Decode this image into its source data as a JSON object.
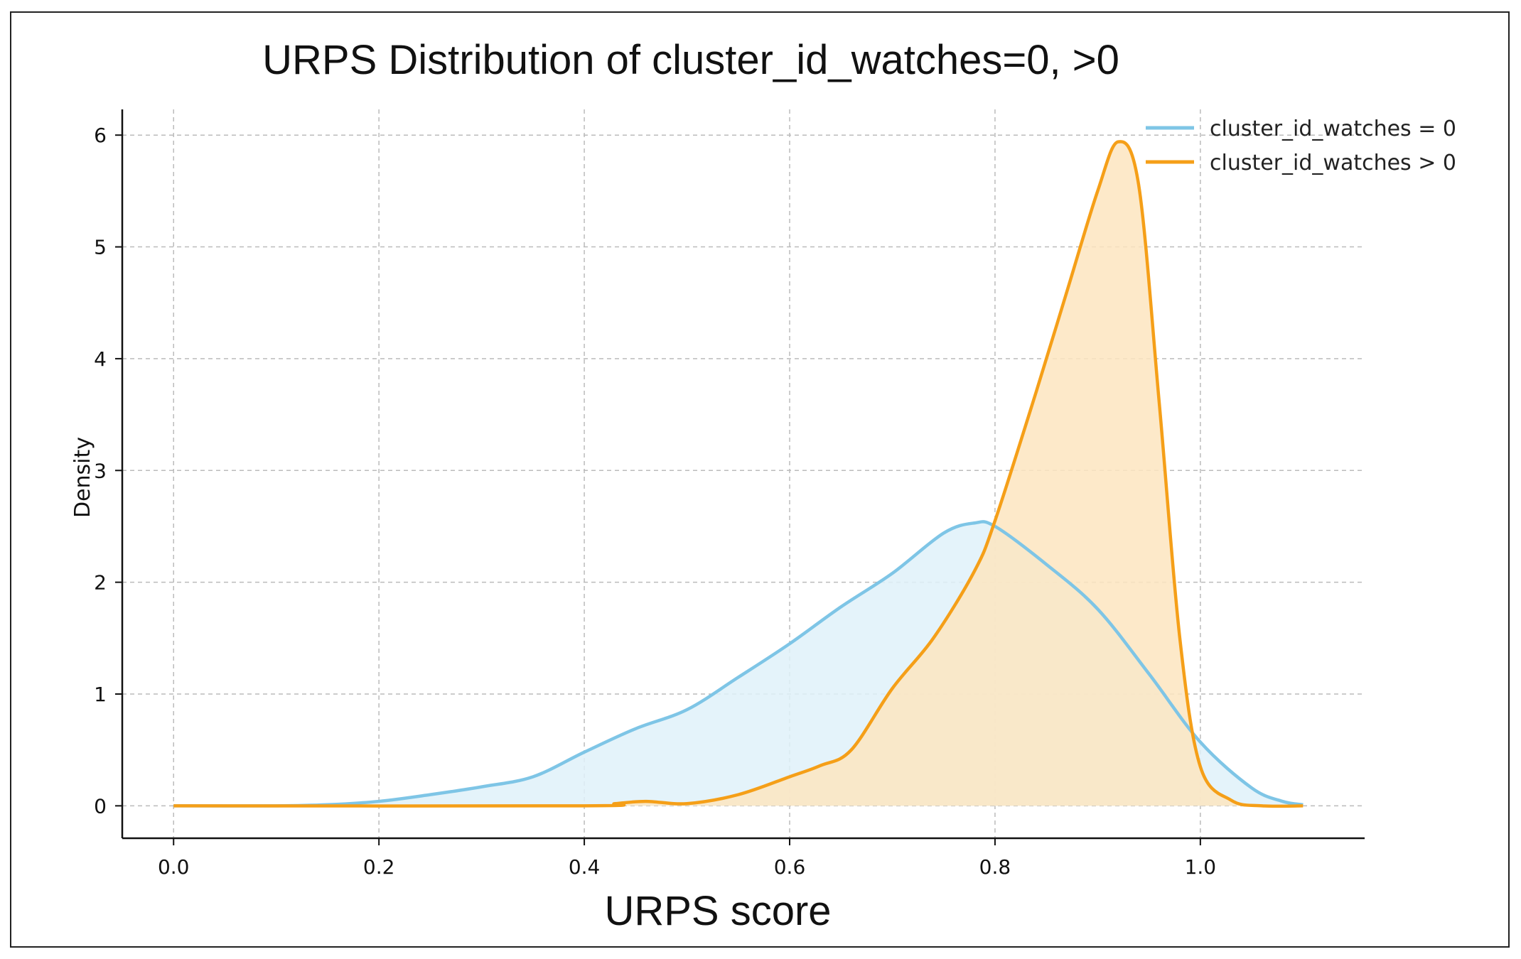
{
  "chart_data": {
    "type": "area",
    "title": "URPS Distribution of cluster_id_watches=0, >0",
    "xlabel": "URPS score",
    "ylabel": "Density",
    "xlim": [
      -0.05,
      1.16
    ],
    "ylim": [
      -0.29,
      6.23
    ],
    "xticks": [
      "0.0",
      "0.2",
      "0.4",
      "0.6",
      "0.8",
      "1.0"
    ],
    "yticks": [
      "0",
      "1",
      "2",
      "3",
      "4",
      "5",
      "6"
    ],
    "grid": true,
    "legend_position": "top-right",
    "series": [
      {
        "name": "cluster_id_watches = 0",
        "color": "#7ec5e6",
        "fill": "#dff1f9",
        "x": [
          0.0,
          0.1,
          0.15,
          0.2,
          0.25,
          0.3,
          0.35,
          0.4,
          0.45,
          0.5,
          0.55,
          0.6,
          0.65,
          0.7,
          0.75,
          0.78,
          0.8,
          0.85,
          0.9,
          0.95,
          1.0,
          1.05,
          1.08,
          1.1
        ],
        "y": [
          0.0,
          0.0,
          0.01,
          0.04,
          0.1,
          0.17,
          0.26,
          0.48,
          0.69,
          0.86,
          1.15,
          1.45,
          1.78,
          2.08,
          2.44,
          2.53,
          2.5,
          2.16,
          1.76,
          1.18,
          0.57,
          0.16,
          0.04,
          0.01
        ]
      },
      {
        "name": "cluster_id_watches > 0",
        "color": "#f59f18",
        "fill": "#fde5bf",
        "x": [
          0.0,
          0.4,
          0.43,
          0.46,
          0.5,
          0.55,
          0.6,
          0.63,
          0.66,
          0.7,
          0.74,
          0.78,
          0.8,
          0.84,
          0.87,
          0.9,
          0.92,
          0.94,
          0.96,
          0.98,
          1.0,
          1.03,
          1.06,
          1.1
        ],
        "y": [
          0.0,
          0.0,
          0.02,
          0.04,
          0.02,
          0.1,
          0.26,
          0.36,
          0.5,
          1.05,
          1.5,
          2.1,
          2.55,
          3.7,
          4.6,
          5.5,
          5.94,
          5.55,
          3.6,
          1.5,
          0.35,
          0.05,
          0.0,
          0.0
        ]
      }
    ]
  }
}
